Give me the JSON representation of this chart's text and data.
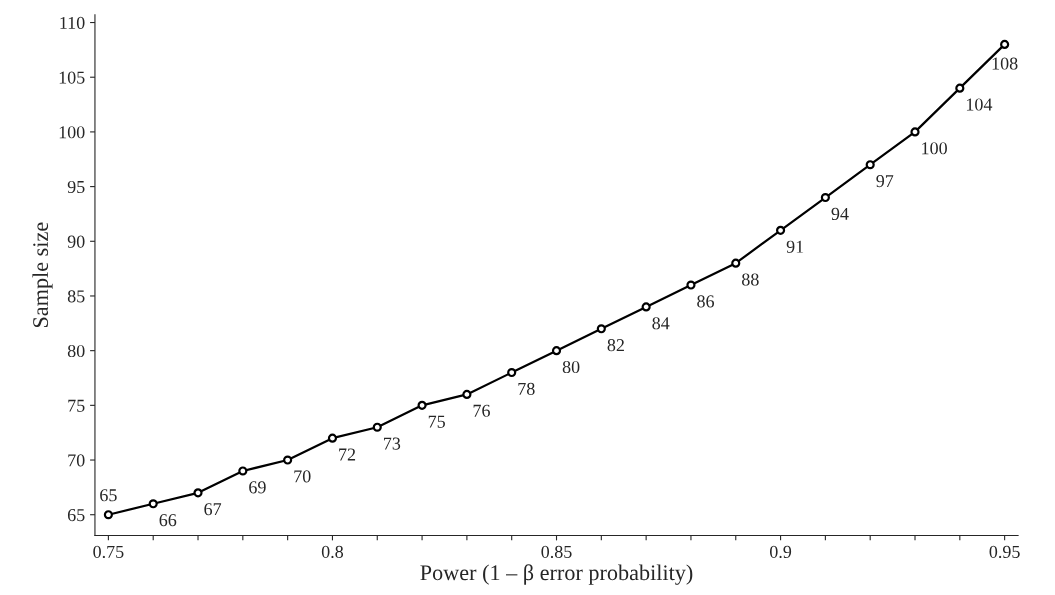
{
  "chart_data": {
    "type": "line",
    "xlabel": "Power (1 – β error probability)",
    "ylabel": "Sample size",
    "x": [
      0.75,
      0.76,
      0.77,
      0.78,
      0.79,
      0.8,
      0.81,
      0.82,
      0.83,
      0.84,
      0.85,
      0.86,
      0.87,
      0.88,
      0.89,
      0.9,
      0.91,
      0.92,
      0.93,
      0.94,
      0.95
    ],
    "series": [
      {
        "color": "#000000",
        "values": [
          65,
          66,
          67,
          69,
          70,
          72,
          73,
          75,
          76,
          78,
          80,
          82,
          84,
          86,
          88,
          91,
          94,
          97,
          100,
          104,
          108
        ]
      }
    ],
    "data_labels": true,
    "marker": "circle",
    "line_style": "solid",
    "grid": false,
    "legend": false,
    "xlim": [
      0.747,
      0.953
    ],
    "ylim": [
      63.1,
      110.7
    ],
    "xticks": [
      0.75,
      {
        "value": 0.76,
        "label": null
      },
      {
        "value": 0.77,
        "label": null
      },
      {
        "value": 0.78,
        "label": null
      },
      {
        "value": 0.79,
        "label": null
      },
      0.8,
      {
        "value": 0.81,
        "label": null
      },
      {
        "value": 0.82,
        "label": null
      },
      {
        "value": 0.83,
        "label": null
      },
      {
        "value": 0.84,
        "label": null
      },
      0.85,
      {
        "value": 0.86,
        "label": null
      },
      {
        "value": 0.87,
        "label": null
      },
      {
        "value": 0.88,
        "label": null
      },
      {
        "value": 0.89,
        "label": null
      },
      0.9,
      {
        "value": 0.91,
        "label": null
      },
      {
        "value": 0.92,
        "label": null
      },
      {
        "value": 0.93,
        "label": null
      },
      {
        "value": 0.94,
        "label": null
      },
      0.95
    ],
    "yticks": [
      65,
      70,
      75,
      80,
      85,
      90,
      95,
      100,
      105,
      110
    ]
  }
}
